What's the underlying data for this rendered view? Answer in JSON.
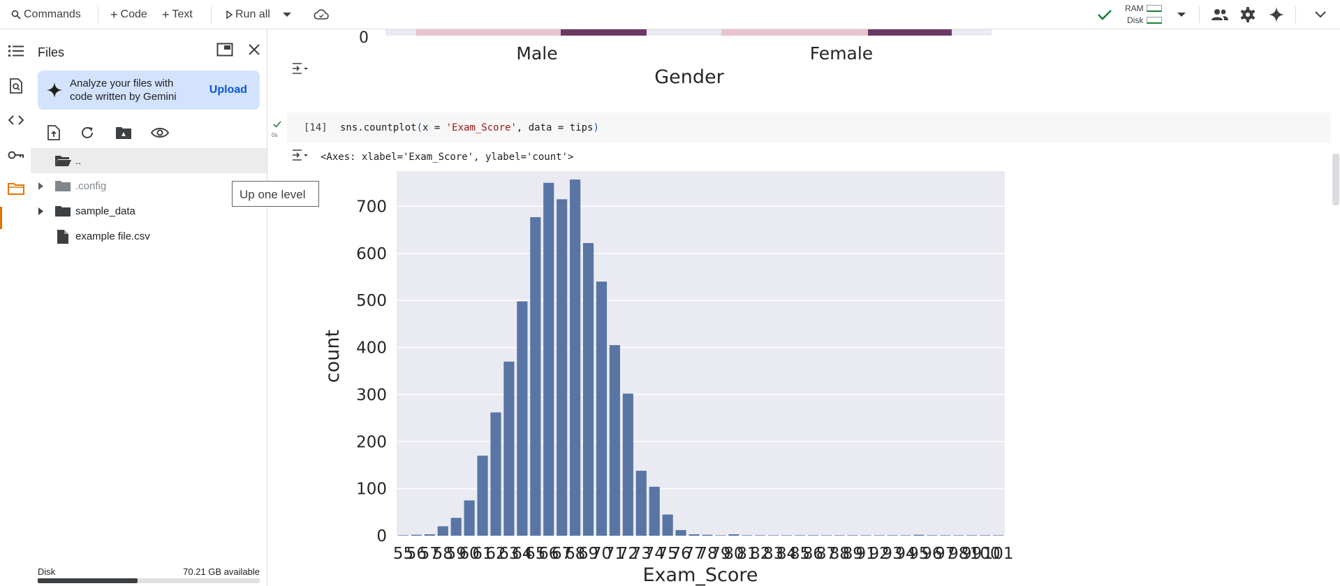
{
  "toolbar": {
    "commands_label": "Commands",
    "code_label": "Code",
    "text_label": "Text",
    "run_all_label": "Run all",
    "ram_label": "RAM",
    "disk_label": "Disk"
  },
  "files_panel": {
    "title": "Files",
    "gemini_text": "Analyze your files with code written by Gemini",
    "upload_label": "Upload",
    "tree": [
      {
        "label": "..",
        "type": "folder-open",
        "expandable": false
      },
      {
        "label": ".config",
        "type": "folder",
        "expandable": true
      },
      {
        "label": "sample_data",
        "type": "folder",
        "expandable": true
      },
      {
        "label": "example file.csv",
        "type": "file",
        "expandable": false
      }
    ],
    "disk_label": "Disk",
    "disk_available": "70.21 GB available",
    "disk_used_fraction": 0.45
  },
  "tooltip": "Up one level",
  "previous_output": {
    "y_tick": "0",
    "categories": [
      "Male",
      "Female"
    ],
    "xlabel": "Gender"
  },
  "cell": {
    "number": "[14]",
    "time": "0s",
    "code_prefix": "sns.countplot",
    "code_paren_open": "(",
    "code_mid": "x = ",
    "code_str1": "'Exam_Score'",
    "code_mid2": ", data = tips",
    "code_paren_close": ")",
    "output_text": "<Axes: xlabel='Exam_Score', ylabel='count'>"
  },
  "colors": {
    "bar": "#5875a4",
    "plot_bg": "#eaeaf2",
    "accent_orange": "#e37400",
    "ok_green": "#188038",
    "gemini_card": "#d3e3fd"
  },
  "chart_data": {
    "type": "bar",
    "xlabel": "Exam_Score",
    "ylabel": "count",
    "ylim": [
      0,
      760
    ],
    "yticks": [
      0,
      100,
      200,
      300,
      400,
      500,
      600,
      700
    ],
    "grid": true,
    "categories": [
      "55",
      "56",
      "57",
      "58",
      "59",
      "60",
      "61",
      "62",
      "63",
      "64",
      "65",
      "66",
      "67",
      "68",
      "69",
      "70",
      "71",
      "72",
      "73",
      "74",
      "75",
      "76",
      "77",
      "78",
      "79",
      "80",
      "81",
      "82",
      "83",
      "84",
      "85",
      "86",
      "87",
      "88",
      "89",
      "91",
      "92",
      "93",
      "94",
      "95",
      "96",
      "97",
      "98",
      "99",
      "100",
      "101"
    ],
    "values": [
      1,
      2,
      3,
      20,
      38,
      75,
      170,
      262,
      370,
      498,
      677,
      750,
      715,
      757,
      622,
      540,
      405,
      302,
      138,
      104,
      45,
      12,
      3,
      2,
      1,
      3,
      1,
      1,
      1,
      1,
      1,
      1,
      1,
      1,
      1,
      1,
      1,
      1,
      1,
      2,
      1,
      1,
      1,
      1,
      1,
      1
    ]
  }
}
